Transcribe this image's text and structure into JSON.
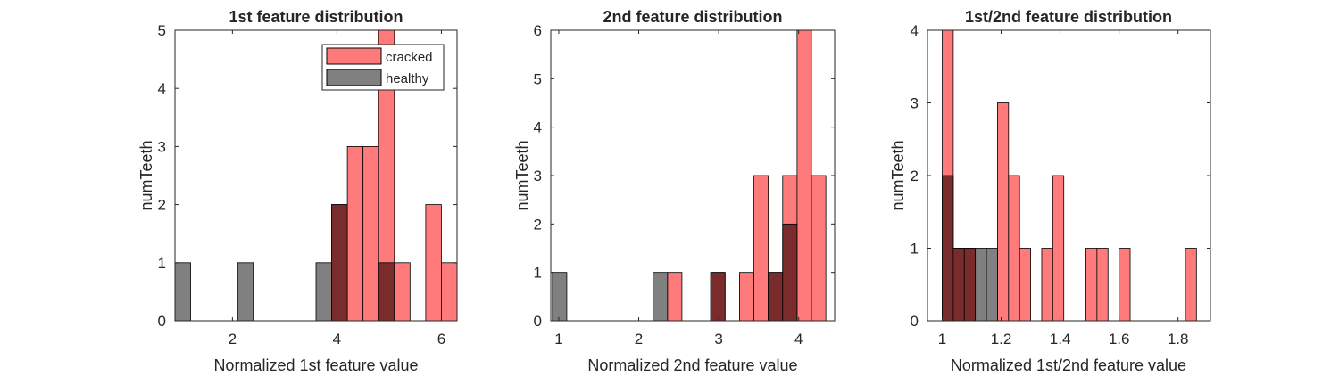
{
  "colors": {
    "cracked": "#ff7b7b",
    "healthy": "#808080",
    "overlap": "#7a2c2c",
    "axis": "#262626",
    "edge": "#000000"
  },
  "legend": {
    "cracked_label": "cracked",
    "healthy_label": "healthy",
    "location": "top-right (first subplot)"
  },
  "chart_data": [
    {
      "type": "histogram",
      "title": "1st feature distribution",
      "xlabel": "Normalized 1st feature value",
      "ylabel": "numTeeth",
      "xlim": [
        0.9,
        6.3
      ],
      "ylim": [
        0,
        5
      ],
      "xticks": [
        2,
        4,
        6
      ],
      "yticks": [
        0,
        1,
        2,
        3,
        4,
        5
      ],
      "bin_width": 0.3,
      "series": [
        {
          "name": "cracked",
          "bins": [
            {
              "x0": 4.2,
              "count": 2
            },
            {
              "x0": 4.5,
              "count": 3
            },
            {
              "x0": 4.8,
              "count": 3
            },
            {
              "x0": 5.1,
              "count": 5
            },
            {
              "x0": 5.4,
              "count": 1
            },
            {
              "x0": 6.0,
              "count": 2
            },
            {
              "x0": 6.3,
              "count": 1
            }
          ]
        },
        {
          "name": "healthy",
          "bins": [
            {
              "x0": 1.2,
              "count": 1
            },
            {
              "x0": 2.4,
              "count": 1
            },
            {
              "x0": 3.9,
              "count": 1
            },
            {
              "x0": 4.2,
              "count": 2
            },
            {
              "x0": 5.1,
              "count": 1
            }
          ]
        }
      ]
    },
    {
      "type": "histogram",
      "title": "2nd feature distribution",
      "xlabel": "Normalized 2nd feature value",
      "ylabel": "numTeeth",
      "xlim": [
        0.9,
        4.45
      ],
      "ylim": [
        0,
        6
      ],
      "xticks": [
        1,
        2,
        3,
        4
      ],
      "yticks": [
        0,
        1,
        2,
        3,
        4,
        5,
        6
      ],
      "bin_width": 0.18,
      "series": [
        {
          "name": "cracked",
          "bins": [
            {
              "x0": 2.54,
              "count": 1
            },
            {
              "x0": 3.08,
              "count": 1
            },
            {
              "x0": 3.44,
              "count": 1
            },
            {
              "x0": 3.62,
              "count": 3
            },
            {
              "x0": 3.8,
              "count": 1
            },
            {
              "x0": 3.98,
              "count": 3
            },
            {
              "x0": 4.16,
              "count": 6
            },
            {
              "x0": 4.34,
              "count": 3
            }
          ]
        },
        {
          "name": "healthy",
          "bins": [
            {
              "x0": 1.1,
              "count": 1
            },
            {
              "x0": 2.36,
              "count": 1
            },
            {
              "x0": 3.08,
              "count": 1
            },
            {
              "x0": 3.8,
              "count": 1
            },
            {
              "x0": 3.98,
              "count": 2
            }
          ]
        }
      ]
    },
    {
      "type": "histogram",
      "title": "1st/2nd feature distribution",
      "xlabel": "Normalized 1st/2nd feature value",
      "ylabel": "numTeeth",
      "xlim": [
        0.95,
        1.91
      ],
      "ylim": [
        0,
        4
      ],
      "xticks": [
        1,
        1.2,
        1.4,
        1.6,
        1.8
      ],
      "yticks": [
        0,
        1,
        2,
        3,
        4
      ],
      "bin_width": 0.0375,
      "series": [
        {
          "name": "cracked",
          "bins": [
            {
              "x0": 1.0375,
              "count": 4
            },
            {
              "x0": 1.075,
              "count": 1
            },
            {
              "x0": 1.1125,
              "count": 1
            },
            {
              "x0": 1.225,
              "count": 3
            },
            {
              "x0": 1.2625,
              "count": 2
            },
            {
              "x0": 1.3,
              "count": 1
            },
            {
              "x0": 1.375,
              "count": 1
            },
            {
              "x0": 1.4125,
              "count": 2
            },
            {
              "x0": 1.525,
              "count": 1
            },
            {
              "x0": 1.5625,
              "count": 1
            },
            {
              "x0": 1.6375,
              "count": 1
            },
            {
              "x0": 1.8625,
              "count": 1
            }
          ]
        },
        {
          "name": "healthy",
          "bins": [
            {
              "x0": 1.0375,
              "count": 2
            },
            {
              "x0": 1.075,
              "count": 1
            },
            {
              "x0": 1.1125,
              "count": 1
            },
            {
              "x0": 1.15,
              "count": 1
            },
            {
              "x0": 1.1875,
              "count": 1
            }
          ]
        }
      ]
    }
  ]
}
